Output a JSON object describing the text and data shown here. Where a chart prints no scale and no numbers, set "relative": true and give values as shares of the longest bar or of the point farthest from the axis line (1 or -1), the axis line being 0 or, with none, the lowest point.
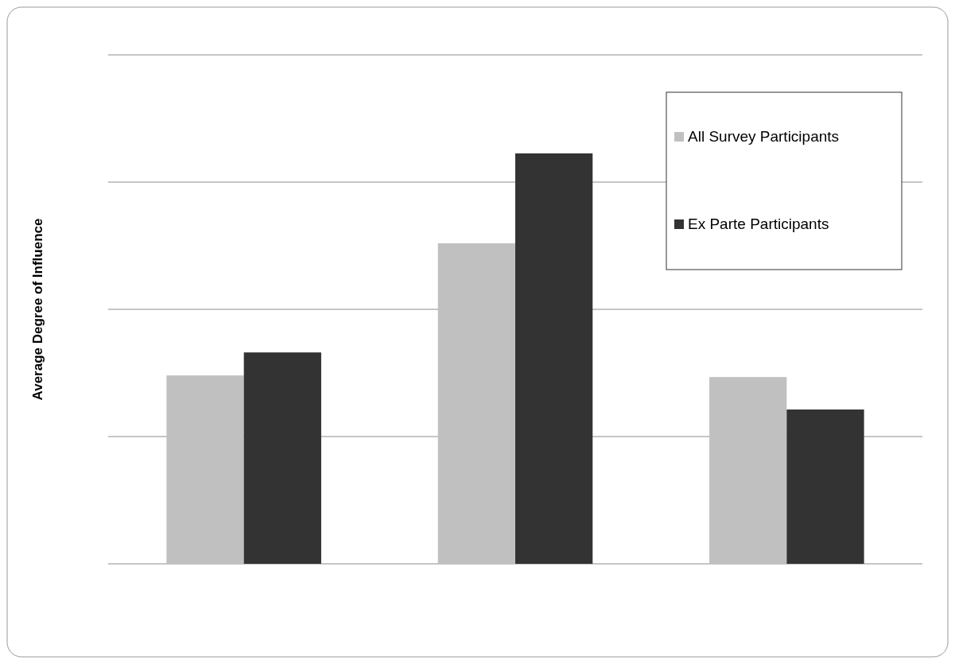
{
  "chart_data": {
    "type": "bar",
    "ylabel": "Average Degree of Influence",
    "categories": [
      null,
      null,
      null
    ],
    "relative": true,
    "grid": "y",
    "legend": "top right",
    "series": [
      {
        "name": "All Survey Participants",
        "color": "#c0c0c0",
        "values": [
          0.459,
          0.781,
          0.455
        ]
      },
      {
        "name": "Ex Parte Participants",
        "color": "#333333",
        "values": [
          0.515,
          1,
          0.376
        ]
      }
    ]
  }
}
